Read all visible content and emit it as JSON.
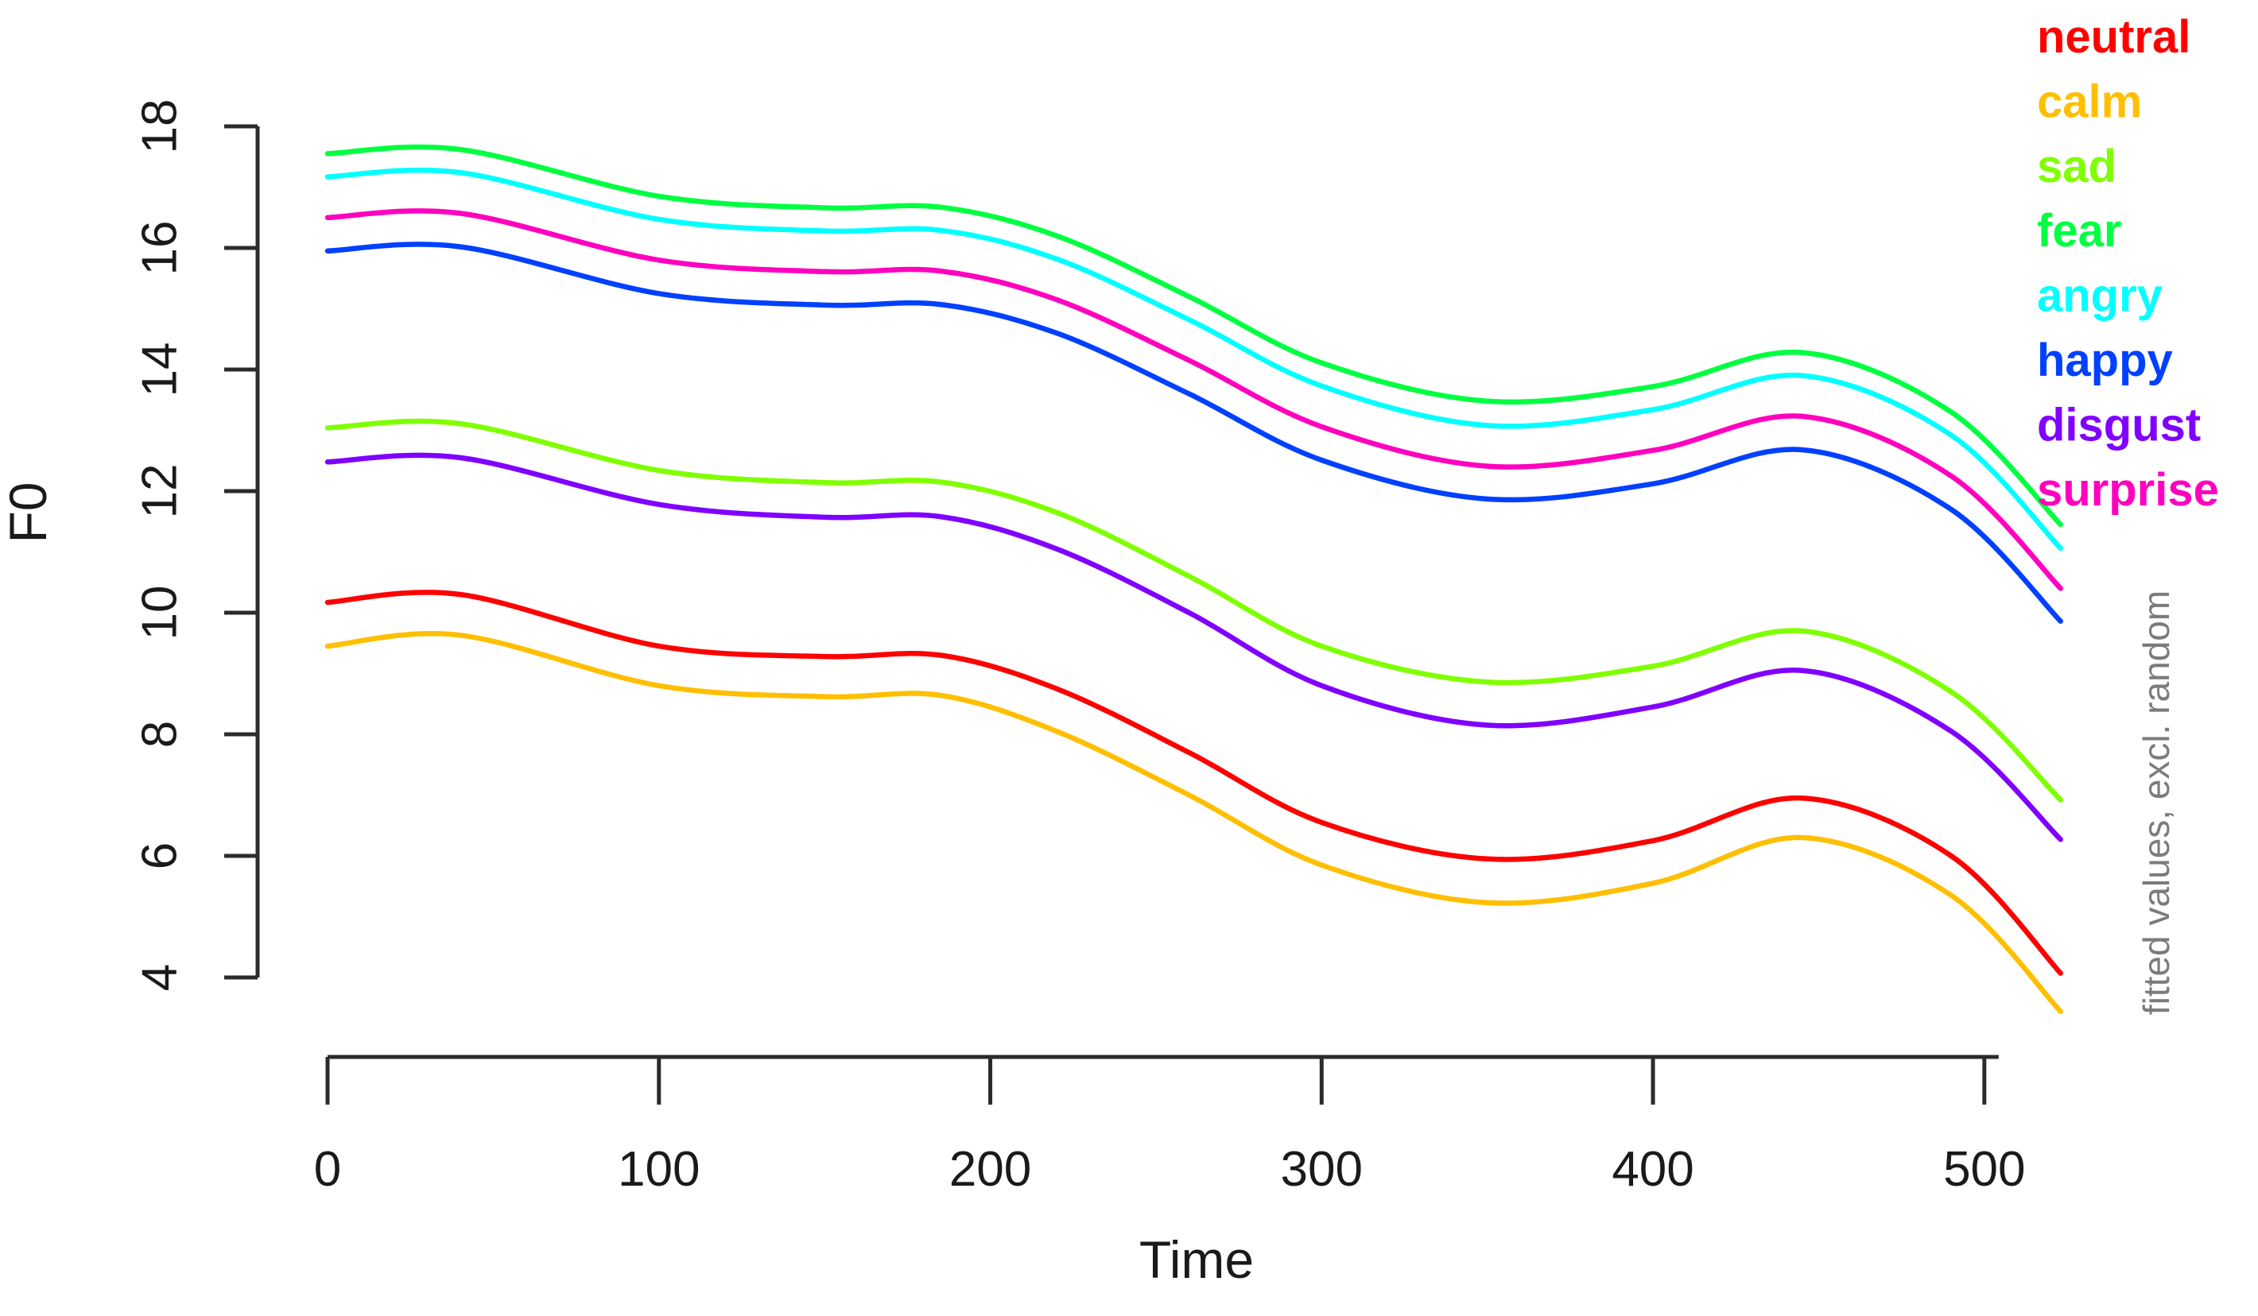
{
  "chart_data": {
    "type": "line",
    "title": "",
    "xlabel": "Time",
    "ylabel": "F0",
    "note_right": "fitted values, excl. random",
    "x_ticks": [
      0,
      100,
      200,
      300,
      400,
      500
    ],
    "y_ticks": [
      4,
      6,
      8,
      10,
      12,
      14,
      16,
      18
    ],
    "xlim": [
      0,
      525
    ],
    "ylim": [
      3.4,
      17.7
    ],
    "grid": "off",
    "legend_position": "top-right",
    "x": [
      0,
      40,
      100,
      150,
      185,
      220,
      260,
      300,
      350,
      400,
      445,
      490,
      523
    ],
    "series": [
      {
        "name": "neutral",
        "color": "#FF0000",
        "values": [
          10.17,
          10.3,
          9.45,
          9.28,
          9.3,
          8.75,
          7.7,
          6.55,
          5.95,
          6.25,
          6.95,
          6.0,
          4.07
        ]
      },
      {
        "name": "calm",
        "color": "#FFBF00",
        "values": [
          9.45,
          9.63,
          8.8,
          8.62,
          8.64,
          8.05,
          7.0,
          5.85,
          5.23,
          5.55,
          6.3,
          5.35,
          3.44
        ]
      },
      {
        "name": "sad",
        "color": "#80FF00",
        "values": [
          13.04,
          13.11,
          12.34,
          12.14,
          12.15,
          11.65,
          10.6,
          9.45,
          8.86,
          9.12,
          9.7,
          8.7,
          6.92
        ]
      },
      {
        "name": "fear",
        "color": "#00FF40",
        "values": [
          17.55,
          17.62,
          16.85,
          16.66,
          16.67,
          16.2,
          15.2,
          14.11,
          13.48,
          13.72,
          14.28,
          13.3,
          11.45
        ]
      },
      {
        "name": "angry",
        "color": "#00FFFF",
        "values": [
          17.17,
          17.24,
          16.47,
          16.28,
          16.29,
          15.82,
          14.82,
          13.73,
          13.08,
          13.34,
          13.9,
          12.92,
          11.06
        ]
      },
      {
        "name": "happy",
        "color": "#0040FF",
        "values": [
          15.95,
          16.02,
          15.25,
          15.06,
          15.07,
          14.6,
          13.6,
          12.51,
          11.87,
          12.12,
          12.68,
          11.7,
          9.86
        ]
      },
      {
        "name": "disgust",
        "color": "#8000FF",
        "values": [
          12.48,
          12.55,
          11.78,
          11.57,
          11.58,
          11.05,
          10.0,
          8.8,
          8.15,
          8.45,
          9.05,
          8.05,
          6.27
        ]
      },
      {
        "name": "surprise",
        "color": "#FF00BF",
        "values": [
          16.5,
          16.57,
          15.8,
          15.61,
          15.62,
          15.15,
          14.15,
          13.06,
          12.41,
          12.67,
          13.23,
          12.25,
          10.4
        ]
      }
    ],
    "legend_order": [
      "neutral",
      "calm",
      "sad",
      "fear",
      "angry",
      "happy",
      "disgust",
      "surprise"
    ],
    "axis_color": "#2b2b2b",
    "label_color": "#1a1a1a",
    "note_color": "#7b7b7b"
  }
}
